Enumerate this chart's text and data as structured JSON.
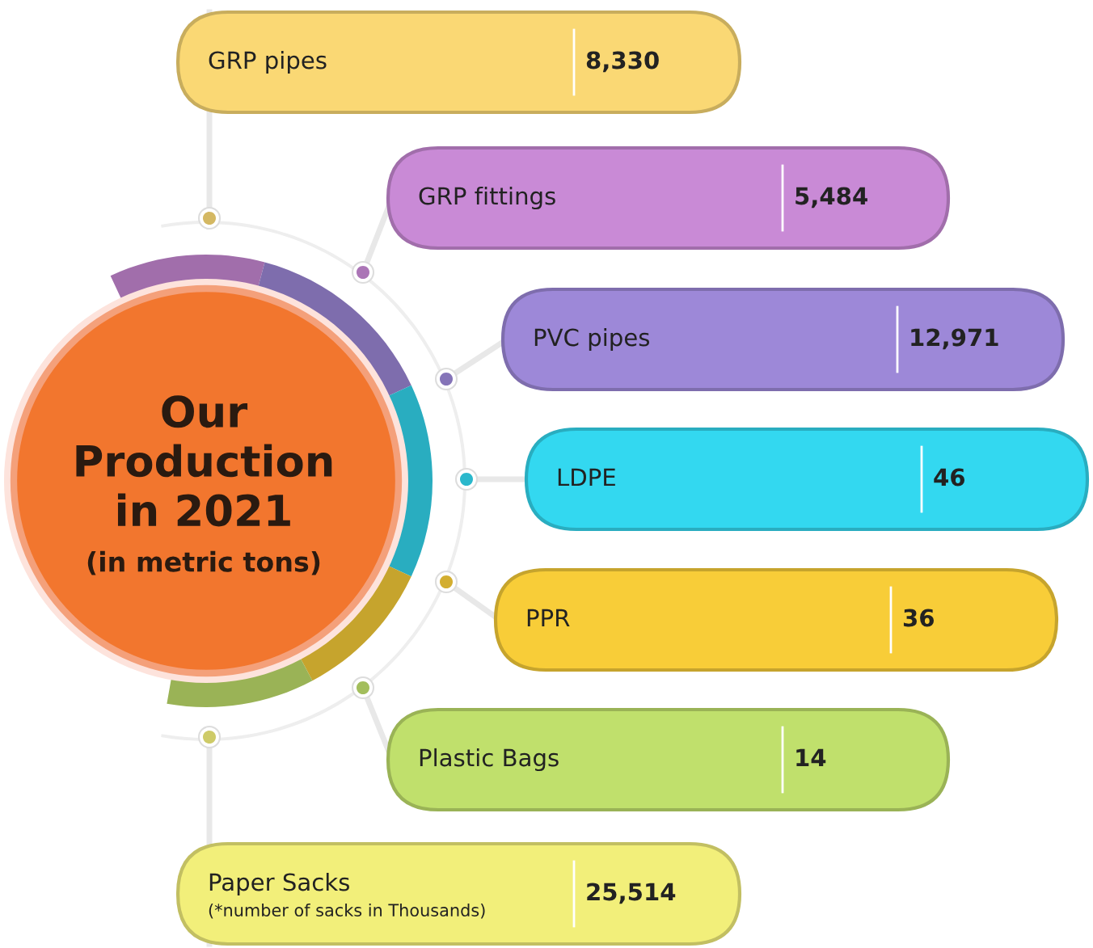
{
  "chart_data": {
    "type": "other",
    "title": "Our\nProduction\nin 2021",
    "subtitle": "(in metric tons)",
    "categories": [
      "GRP pipes",
      "GRP fittings",
      "PVC pipes",
      "LDPE",
      "PPR",
      "Plastic Bags",
      "Paper Sacks"
    ],
    "values": [
      8330,
      5484,
      12971,
      46,
      36,
      14,
      25514
    ],
    "value_labels": [
      "8,330",
      "5,484",
      "12,971",
      "46",
      "36",
      "14",
      "25,514"
    ],
    "colors": [
      "#fad874",
      "#c98ad6",
      "#9d88d8",
      "#33d8f0",
      "#f8cd38",
      "#c0e06c",
      "#f2ef7a"
    ],
    "annotations": [
      "(*number of sacks in Thousands)"
    ]
  }
}
